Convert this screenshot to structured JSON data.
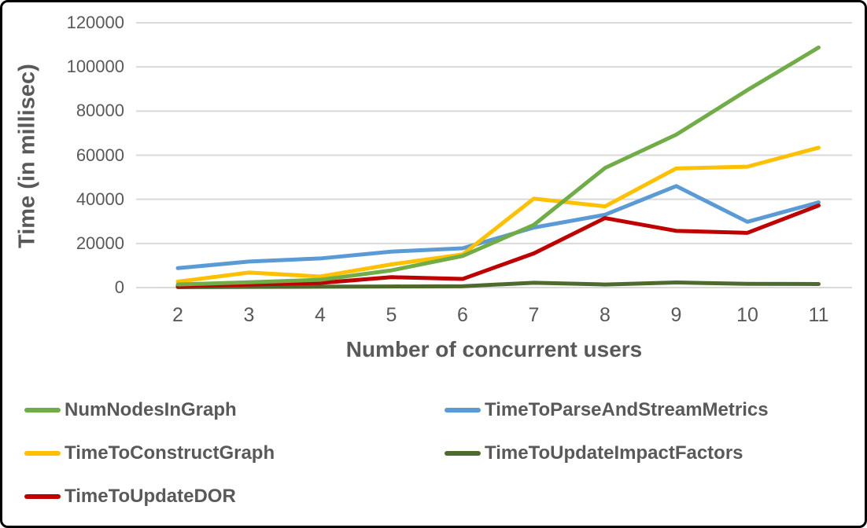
{
  "frame": {
    "background": "#FFFFFF",
    "border_color": "#000000"
  },
  "chart_data": {
    "type": "line",
    "title": "",
    "xlabel": "Number of concurrent users",
    "ylabel": "Time (in millisec)",
    "x": [
      2,
      3,
      4,
      5,
      6,
      7,
      8,
      9,
      10,
      11
    ],
    "x_tick_labels": [
      "2",
      "3",
      "4",
      "5",
      "6",
      "7",
      "8",
      "9",
      "10",
      "11"
    ],
    "ylim": [
      0,
      120000
    ],
    "yticks": [
      0,
      20000,
      40000,
      60000,
      80000,
      100000,
      120000
    ],
    "grid": true,
    "legend_position": "bottom",
    "grid_color": "#D9D9D9",
    "text_color": "#595959",
    "series": [
      {
        "name": "NumNodesInGraph",
        "color": "#70AD47",
        "values": [
          1400,
          2400,
          3500,
          7800,
          14300,
          28400,
          54200,
          69300,
          89500,
          108800
        ]
      },
      {
        "name": "TimeToParseAndStreamMetrics",
        "color": "#5B9BD5",
        "values": [
          8800,
          11800,
          13200,
          16300,
          17800,
          27200,
          33000,
          46000,
          29800,
          38600
        ]
      },
      {
        "name": "TimeToConstructGraph",
        "color": "#FFC000",
        "values": [
          2700,
          6800,
          5000,
          10500,
          15000,
          40300,
          36800,
          54000,
          54800,
          63400
        ]
      },
      {
        "name": "TimeToUpdateImpactFactors",
        "color": "#4E6B2F",
        "values": [
          200,
          300,
          400,
          500,
          600,
          2200,
          1400,
          2300,
          1700,
          1600
        ]
      },
      {
        "name": "TimeToUpdateDOR",
        "color": "#C00000",
        "values": [
          600,
          1400,
          2100,
          4700,
          3900,
          15500,
          31500,
          25700,
          24800,
          37200
        ]
      }
    ],
    "draw_order": [
      "TimeToUpdateImpactFactors",
      "TimeToParseAndStreamMetrics",
      "TimeToConstructGraph",
      "TimeToUpdateDOR",
      "NumNodesInGraph"
    ]
  }
}
